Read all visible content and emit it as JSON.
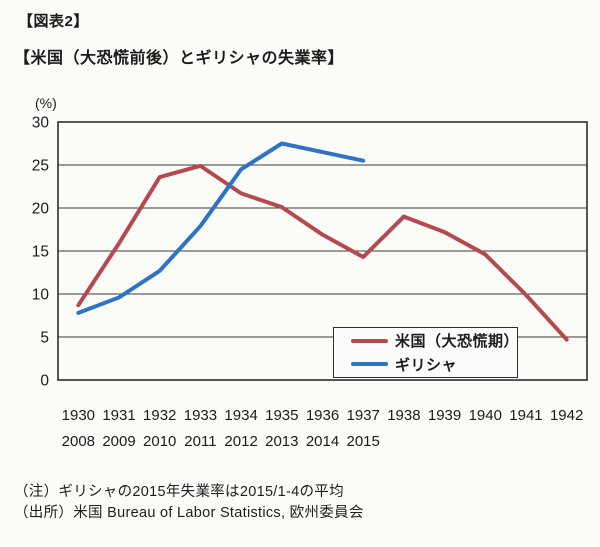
{
  "header": {
    "tag": "【図表2】",
    "title": "【米国（大恐慌前後）とギリシャの失業率】"
  },
  "chart_data": {
    "type": "line",
    "title": "米国（大恐慌前後）とギリシャの失業率",
    "unit_label": "(%)",
    "ylabel": "",
    "xlabel": "",
    "ylim": [
      0,
      30
    ],
    "yticks": [
      0,
      5,
      10,
      15,
      20,
      25,
      30
    ],
    "grid": "horizontal",
    "legend_position": "inside-bottom-right",
    "x_axis": {
      "row1": [
        "1930",
        "1931",
        "1932",
        "1933",
        "1934",
        "1935",
        "1936",
        "1937",
        "1938",
        "1939",
        "1940",
        "1941",
        "1942"
      ],
      "row2": [
        "2008",
        "2009",
        "2010",
        "2011",
        "2012",
        "2013",
        "2014",
        "2015"
      ]
    },
    "series": [
      {
        "name": "米国（大恐慌期）",
        "color": "#b5494f",
        "values": [
          8.7,
          15.9,
          23.6,
          24.9,
          21.7,
          20.1,
          16.9,
          14.3,
          19.0,
          17.2,
          14.6,
          9.9,
          4.7
        ]
      },
      {
        "name": "ギリシャ",
        "color": "#2e73c5",
        "values": [
          7.8,
          9.6,
          12.7,
          17.9,
          24.5,
          27.5,
          26.5,
          25.5
        ]
      }
    ]
  },
  "notes": {
    "line1": "（注）ギリシャの2015年失業率は2015/1-4の平均",
    "line2": "（出所）米国 Bureau of Labor Statistics, 欧州委員会"
  }
}
